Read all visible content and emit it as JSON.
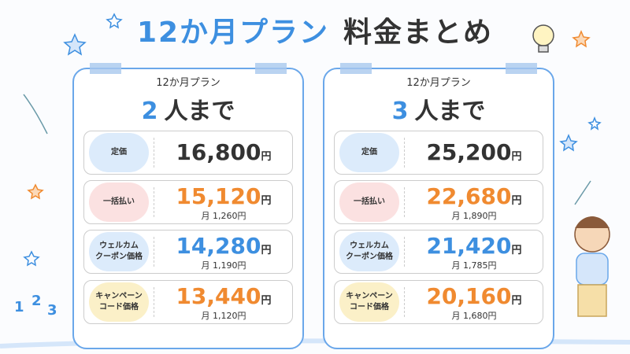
{
  "title": {
    "plan": "12か月プラン",
    "rest": "料金まとめ"
  },
  "decor_numbers": [
    "1",
    "2",
    "3"
  ],
  "cards": [
    {
      "subtitle": "12か月プラン",
      "count": "2",
      "count_suffix": "人まで",
      "rows": [
        {
          "label": [
            "定価"
          ],
          "price": "16,800",
          "unit": "円",
          "tone": "plain",
          "monthly": null
        },
        {
          "label": [
            "一括払い"
          ],
          "price": "15,120",
          "unit": "円",
          "tone": "orange",
          "monthly": "月 1,260円"
        },
        {
          "label": [
            "ウェルカム",
            "クーポン価格"
          ],
          "price": "14,280",
          "unit": "円",
          "tone": "blue",
          "monthly": "月 1,190円"
        },
        {
          "label": [
            "キャンペーン",
            "コード価格"
          ],
          "price": "13,440",
          "unit": "円",
          "tone": "orange",
          "monthly": "月 1,120円"
        }
      ]
    },
    {
      "subtitle": "12か月プラン",
      "count": "3",
      "count_suffix": "人まで",
      "rows": [
        {
          "label": [
            "定価"
          ],
          "price": "25,200",
          "unit": "円",
          "tone": "plain",
          "monthly": null
        },
        {
          "label": [
            "一括払い"
          ],
          "price": "22,680",
          "unit": "円",
          "tone": "orange",
          "monthly": "月 1,890円"
        },
        {
          "label": [
            "ウェルカム",
            "クーポン価格"
          ],
          "price": "21,420",
          "unit": "円",
          "tone": "blue",
          "monthly": "月 1,785円"
        },
        {
          "label": [
            "キャンペーン",
            "コード価格"
          ],
          "price": "20,160",
          "unit": "円",
          "tone": "orange",
          "monthly": "月 1,680円"
        }
      ]
    }
  ]
}
